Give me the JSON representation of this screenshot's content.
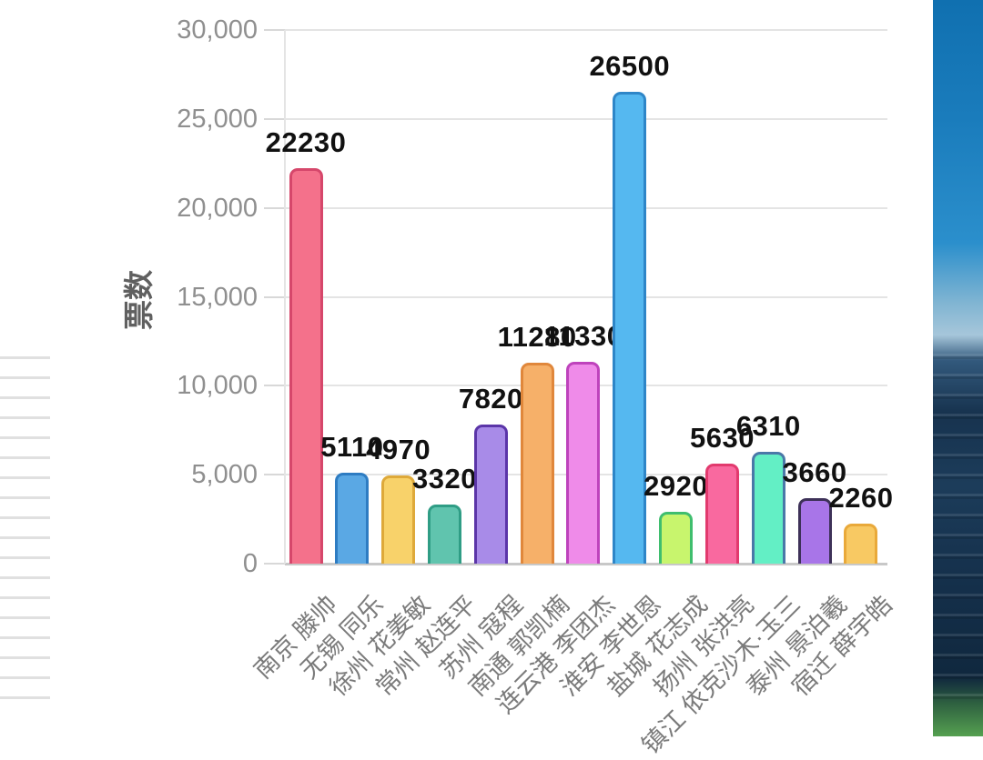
{
  "chart_data": {
    "type": "bar",
    "title": "",
    "xlabel": "",
    "ylabel": "票数",
    "ylim": [
      0,
      30000
    ],
    "y_tick_step": 5000,
    "y_tick_labels": [
      "0",
      "5,000",
      "10,000",
      "15,000",
      "20,000",
      "25,000",
      "30,000"
    ],
    "grid": true,
    "legend": false,
    "categories": [
      "南京 滕帅",
      "无锡 同乐",
      "徐州 花姜敏",
      "常州 赵连平",
      "苏州 寇程",
      "南通 郭凯楠",
      "连云港 李团杰",
      "淮安 李世恩",
      "盐城 花志成",
      "扬州 张洪亮",
      "镇江 依克沙木·玉三",
      "泰州 景泊羲",
      "宿迁 薛宇皓"
    ],
    "values": [
      22230,
      5110,
      4970,
      3320,
      7820,
      11280,
      11330,
      26500,
      2920,
      5630,
      6310,
      3660,
      2260
    ],
    "value_labels": [
      "22230",
      "5110",
      "4970",
      "3320",
      "7820",
      "11280",
      "11330",
      "26500",
      "2920",
      "5630",
      "6310",
      "3660",
      "2260"
    ],
    "bar_fill_colors": [
      "#F4718B",
      "#5AA8E4",
      "#F8D26A",
      "#60C4AE",
      "#A88BE8",
      "#F6B069",
      "#EF8BE9",
      "#55B8F0",
      "#C8F56D",
      "#F9699F",
      "#63EFC5",
      "#A875E8",
      "#F8C963"
    ],
    "bar_stroke_colors": [
      "#D6476B",
      "#2E7CC2",
      "#DEA93A",
      "#2F9D85",
      "#5B35A8",
      "#E0873B",
      "#BE43BC",
      "#2E86C8",
      "#3FBE6E",
      "#E23A6E",
      "#4A78A8",
      "#3D3158",
      "#E9A93A"
    ]
  }
}
